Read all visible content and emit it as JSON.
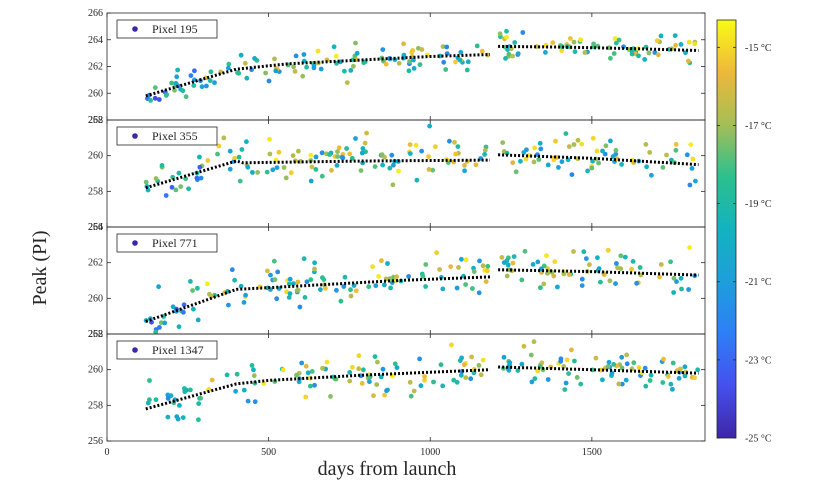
{
  "chart_data": {
    "type": "scatter",
    "xlabel": "days from launch",
    "ylabel": "Peak (PI)",
    "xlim": [
      0,
      1850
    ],
    "x_ticks": [
      0,
      500,
      1000,
      1500
    ],
    "colorbar": {
      "min": -25,
      "max": -14.3,
      "unit": "°C",
      "ticks": [
        {
          "value": -15,
          "label": "-15 °C"
        },
        {
          "value": -17,
          "label": "-17 °C"
        },
        {
          "value": -19,
          "label": "-19 °C"
        },
        {
          "value": -21,
          "label": "-21 °C"
        },
        {
          "value": -23,
          "label": "-23 °C"
        },
        {
          "value": -25,
          "label": "-25 °C"
        }
      ]
    },
    "panels": [
      {
        "legend": "Pixel 195",
        "ylim": [
          258,
          266
        ],
        "y_ticks": [
          258,
          260,
          262,
          264,
          266
        ],
        "trend_segments": [
          [
            [
              120,
              259.8
            ],
            [
              400,
              261.8
            ],
            [
              560,
              262.2
            ],
            [
              800,
              262.5
            ],
            [
              1000,
              262.75
            ],
            [
              1185,
              262.9
            ]
          ],
          [
            [
              1210,
              263.5
            ],
            [
              1400,
              263.45
            ],
            [
              1600,
              263.35
            ],
            [
              1830,
              263.2
            ]
          ]
        ],
        "noise_sd": 0.55,
        "seed": 195
      },
      {
        "legend": "Pixel 355",
        "ylim": [
          256,
          262
        ],
        "y_ticks": [
          256,
          258,
          260,
          262
        ],
        "trend_segments": [
          [
            [
              120,
              258.2
            ],
            [
              400,
              259.7
            ],
            [
              420,
              259.6
            ],
            [
              800,
              259.7
            ],
            [
              1185,
              259.75
            ]
          ],
          [
            [
              1210,
              260.05
            ],
            [
              1500,
              259.85
            ],
            [
              1830,
              259.5
            ]
          ]
        ],
        "noise_sd": 0.6,
        "seed": 355
      },
      {
        "legend": "Pixel 771",
        "ylim": [
          258,
          264
        ],
        "y_ticks": [
          258,
          260,
          262,
          264
        ],
        "trend_segments": [
          [
            [
              120,
              258.7
            ],
            [
              400,
              260.5
            ],
            [
              600,
              260.7
            ],
            [
              900,
              261.0
            ],
            [
              1185,
              261.2
            ]
          ],
          [
            [
              1210,
              261.6
            ],
            [
              1500,
              261.5
            ],
            [
              1830,
              261.3
            ]
          ]
        ],
        "noise_sd": 0.55,
        "seed": 771
      },
      {
        "legend": "Pixel 1347",
        "ylim": [
          256,
          262
        ],
        "y_ticks": [
          256,
          258,
          260,
          262
        ],
        "trend_segments": [
          [
            [
              120,
              257.8
            ],
            [
              400,
              259.2
            ],
            [
              500,
              259.4
            ],
            [
              800,
              259.7
            ],
            [
              1185,
              260.0
            ]
          ],
          [
            [
              1210,
              260.15
            ],
            [
              1500,
              260.0
            ],
            [
              1830,
              259.8
            ]
          ]
        ],
        "noise_sd": 0.6,
        "seed": 1347
      }
    ]
  }
}
